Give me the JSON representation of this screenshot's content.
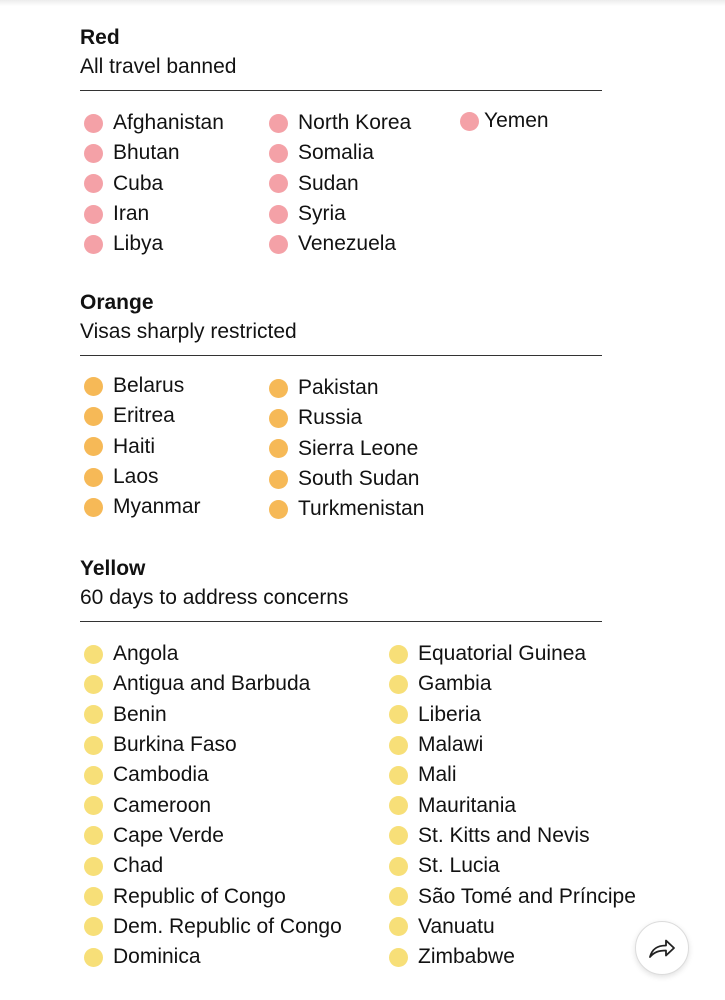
{
  "colors": {
    "red": "#f4a1a7",
    "orange": "#f6b957",
    "yellow": "#f7df78",
    "text": "#121212",
    "rule": "#333333"
  },
  "sections": {
    "red": {
      "title": "Red",
      "subtitle": "All travel banned",
      "col1": [
        "Afghanistan",
        "Bhutan",
        "Cuba",
        "Iran",
        "Libya"
      ],
      "col2": [
        "North Korea",
        "Somalia",
        "Sudan",
        "Syria",
        "Venezuela"
      ],
      "col3": [
        "Yemen"
      ]
    },
    "orange": {
      "title": "Orange",
      "subtitle": "Visas sharply restricted",
      "col1": [
        "Belarus",
        "Eritrea",
        "Haiti",
        "Laos",
        "Myanmar"
      ],
      "col2": [
        "Pakistan",
        "Russia",
        "Sierra Leone",
        "South Sudan",
        "Turkmenistan"
      ]
    },
    "yellow": {
      "title": "Yellow",
      "subtitle": "60 days to address concerns",
      "col1": [
        "Angola",
        "Antigua and Barbuda",
        "Benin",
        "Burkina Faso",
        "Cambodia",
        "Cameroon",
        "Cape Verde",
        "Chad",
        "Republic of Congo",
        "Dem. Republic of Congo",
        "Dominica"
      ],
      "col2": [
        "Equatorial Guinea",
        "Gambia",
        "Liberia",
        "Malawi",
        "Mali",
        "Mauritania",
        "St. Kitts and Nevis",
        "St. Lucia",
        "São Tomé and Príncipe",
        "Vanuatu",
        "Zimbabwe"
      ]
    }
  },
  "share_button": {
    "icon": "share-arrow-icon"
  }
}
